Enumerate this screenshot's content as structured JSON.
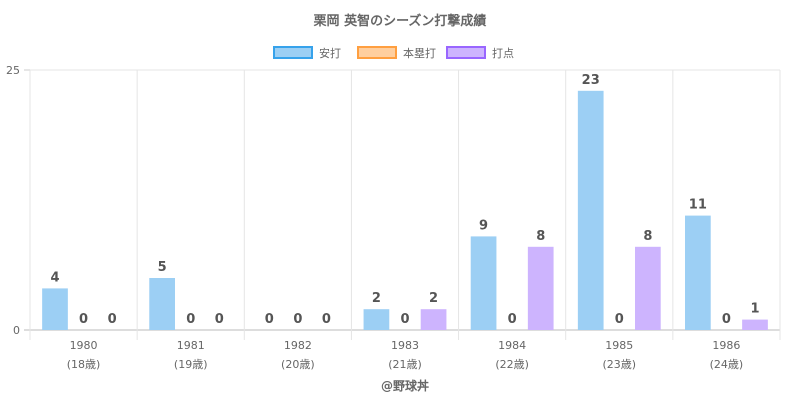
{
  "chart_data": {
    "type": "bar",
    "title": "栗岡 英智のシーズン打撃成績",
    "categories": [
      "1980",
      "1981",
      "1982",
      "1983",
      "1984",
      "1985",
      "1986"
    ],
    "sublabels": [
      "(18歳)",
      "(19歳)",
      "(20歳)",
      "(21歳)",
      "(22歳)",
      "(23歳)",
      "(24歳)"
    ],
    "series": [
      {
        "name": "安打",
        "values": [
          4,
          5,
          0,
          2,
          9,
          23,
          11
        ],
        "fill": "#9ccff4",
        "border": "#36a2eb"
      },
      {
        "name": "本塁打",
        "values": [
          0,
          0,
          0,
          0,
          0,
          0,
          0
        ],
        "fill": "#ffcf9f",
        "border": "#ff9f40"
      },
      {
        "name": "打点",
        "values": [
          0,
          0,
          0,
          2,
          8,
          8,
          1
        ],
        "fill": "#cdb4fe",
        "border": "#9966ff"
      }
    ],
    "ylim": [
      0,
      25
    ],
    "yticks": [
      "0",
      "25"
    ],
    "legend": "top",
    "grid": true,
    "footer": "@野球丼"
  }
}
